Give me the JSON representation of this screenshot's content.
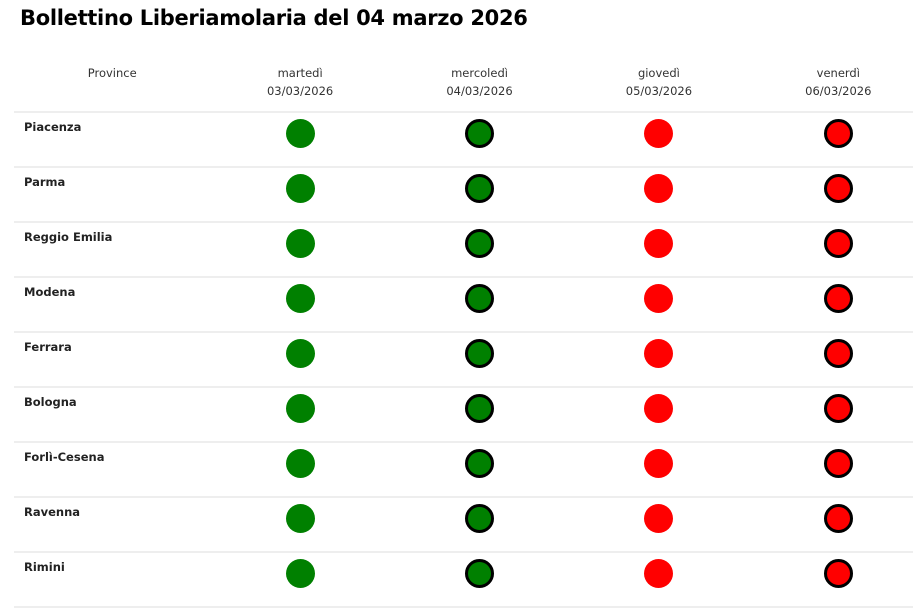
{
  "title": "Bollettino Liberiamolaria del 04 marzo 2026",
  "colors": {
    "green": "#008000",
    "red": "#ff0000"
  },
  "header": {
    "province_label": "Province",
    "days": [
      {
        "day": "martedì",
        "date": "03/03/2026"
      },
      {
        "day": "mercoledì",
        "date": "04/03/2026"
      },
      {
        "day": "giovedì",
        "date": "05/03/2026"
      },
      {
        "day": "venerdì",
        "date": "06/03/2026"
      }
    ]
  },
  "rows": [
    {
      "province": "Piacenza",
      "status": [
        "green",
        "green",
        "red",
        "red"
      ]
    },
    {
      "province": "Parma",
      "status": [
        "green",
        "green",
        "red",
        "red"
      ]
    },
    {
      "province": "Reggio Emilia",
      "status": [
        "green",
        "green",
        "red",
        "red"
      ]
    },
    {
      "province": "Modena",
      "status": [
        "green",
        "green",
        "red",
        "red"
      ]
    },
    {
      "province": "Ferrara",
      "status": [
        "green",
        "green",
        "red",
        "red"
      ]
    },
    {
      "province": "Bologna",
      "status": [
        "green",
        "green",
        "red",
        "red"
      ]
    },
    {
      "province": "Forlì-Cesena",
      "status": [
        "green",
        "green",
        "red",
        "red"
      ]
    },
    {
      "province": "Ravenna",
      "status": [
        "green",
        "green",
        "red",
        "red"
      ]
    },
    {
      "province": "Rimini",
      "status": [
        "green",
        "green",
        "red",
        "red"
      ]
    }
  ],
  "outlined_days": [
    false,
    true,
    false,
    true
  ]
}
